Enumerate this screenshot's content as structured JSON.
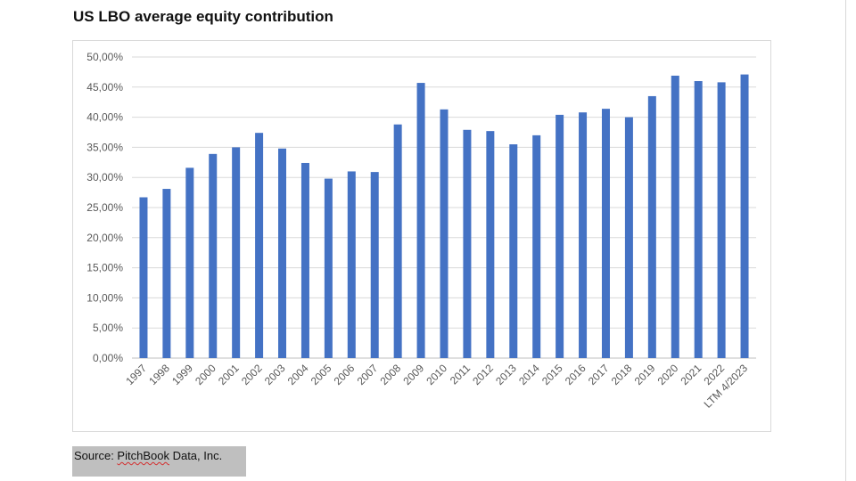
{
  "chart_data": {
    "type": "bar",
    "title": "US LBO average equity contribution",
    "categories": [
      "1997",
      "1998",
      "1999",
      "2000",
      "2001",
      "2002",
      "2003",
      "2004",
      "2005",
      "2006",
      "2007",
      "2008",
      "2009",
      "2010",
      "2011",
      "2012",
      "2013",
      "2014",
      "2015",
      "2016",
      "2017",
      "2018",
      "2019",
      "2020",
      "2021",
      "2022",
      "LTM 4/2023"
    ],
    "values": [
      26.7,
      28.1,
      31.6,
      33.9,
      35.0,
      37.4,
      34.8,
      32.4,
      29.8,
      31.0,
      30.9,
      38.8,
      45.7,
      41.3,
      37.9,
      37.7,
      35.5,
      37.0,
      40.4,
      40.8,
      41.4,
      40.0,
      43.5,
      46.9,
      46.0,
      45.8,
      47.1
    ],
    "ylim": [
      0,
      50
    ],
    "yticks": [
      "0,00%",
      "5,00%",
      "10,00%",
      "15,00%",
      "20,00%",
      "25,00%",
      "30,00%",
      "35,00%",
      "40,00%",
      "45,00%",
      "50,00%"
    ],
    "grid": true,
    "bar_color": "#4472c4",
    "xlabel": "",
    "ylabel": ""
  },
  "source": {
    "prefix": "Source: ",
    "name": "PitchBook",
    "suffix": " Data, Inc."
  }
}
